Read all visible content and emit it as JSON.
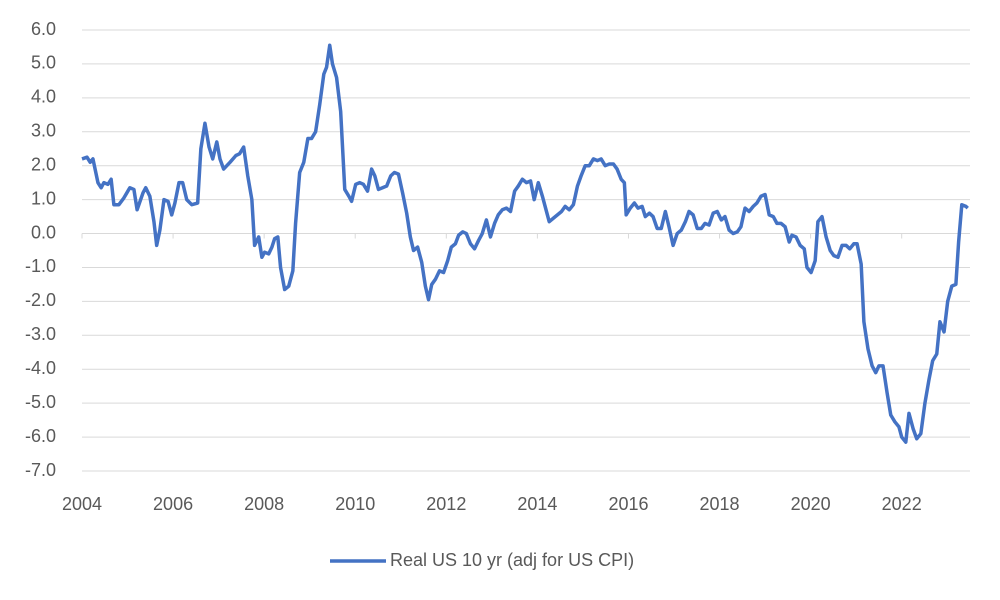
{
  "chart_data": {
    "type": "line",
    "x": [
      2004.0,
      2004.11,
      2004.18,
      2004.24,
      2004.35,
      2004.42,
      2004.48,
      2004.57,
      2004.64,
      2004.7,
      2004.81,
      2004.92,
      2005.05,
      2005.14,
      2005.21,
      2005.34,
      2005.4,
      2005.49,
      2005.58,
      2005.64,
      2005.71,
      2005.8,
      2005.89,
      2005.97,
      2006.04,
      2006.13,
      2006.21,
      2006.3,
      2006.41,
      2006.54,
      2006.61,
      2006.7,
      2006.79,
      2006.87,
      2006.96,
      2007.03,
      2007.11,
      2007.25,
      2007.38,
      2007.46,
      2007.55,
      2007.64,
      2007.73,
      2007.79,
      2007.88,
      2007.95,
      2008.01,
      2008.1,
      2008.17,
      2008.23,
      2008.3,
      2008.36,
      2008.45,
      2008.54,
      2008.63,
      2008.69,
      2008.78,
      2008.87,
      2008.96,
      2009.04,
      2009.13,
      2009.22,
      2009.31,
      2009.37,
      2009.44,
      2009.5,
      2009.59,
      2009.68,
      2009.77,
      2009.86,
      2009.92,
      2010.01,
      2010.1,
      2010.18,
      2010.27,
      2010.36,
      2010.43,
      2010.51,
      2010.6,
      2010.69,
      2010.78,
      2010.86,
      2010.95,
      2011.04,
      2011.13,
      2011.21,
      2011.28,
      2011.37,
      2011.46,
      2011.54,
      2011.61,
      2011.68,
      2011.76,
      2011.85,
      2011.94,
      2012.03,
      2012.11,
      2012.2,
      2012.27,
      2012.36,
      2012.44,
      2012.53,
      2012.62,
      2012.71,
      2012.79,
      2012.88,
      2012.97,
      2013.06,
      2013.14,
      2013.23,
      2013.32,
      2013.41,
      2013.5,
      2013.58,
      2013.67,
      2013.76,
      2013.85,
      2013.93,
      2014.02,
      2014.11,
      2014.2,
      2014.26,
      2014.35,
      2014.44,
      2014.53,
      2014.61,
      2014.7,
      2014.79,
      2014.88,
      2014.96,
      2015.05,
      2015.14,
      2015.23,
      2015.32,
      2015.4,
      2015.49,
      2015.58,
      2015.67,
      2015.75,
      2015.84,
      2015.91,
      2015.95,
      2016.04,
      2016.13,
      2016.21,
      2016.3,
      2016.37,
      2016.46,
      2016.54,
      2016.63,
      2016.72,
      2016.81,
      2016.89,
      2016.98,
      2017.07,
      2017.16,
      2017.25,
      2017.33,
      2017.42,
      2017.51,
      2017.6,
      2017.68,
      2017.77,
      2017.86,
      2017.95,
      2018.04,
      2018.12,
      2018.21,
      2018.3,
      2018.39,
      2018.47,
      2018.56,
      2018.65,
      2018.74,
      2018.82,
      2018.91,
      2019.0,
      2019.09,
      2019.18,
      2019.26,
      2019.35,
      2019.44,
      2019.53,
      2019.59,
      2019.68,
      2019.77,
      2019.86,
      2019.92,
      2020.01,
      2020.1,
      2020.16,
      2020.25,
      2020.34,
      2020.43,
      2020.51,
      2020.6,
      2020.69,
      2020.78,
      2020.86,
      2020.95,
      2021.02,
      2021.11,
      2021.17,
      2021.26,
      2021.35,
      2021.43,
      2021.5,
      2021.59,
      2021.68,
      2021.76,
      2021.85,
      2021.94,
      2022.0,
      2022.09,
      2022.16,
      2022.25,
      2022.33,
      2022.42,
      2022.51,
      2022.6,
      2022.68,
      2022.77,
      2022.84,
      2022.93,
      2023.01,
      2023.1,
      2023.19,
      2023.25,
      2023.32,
      2023.41,
      2023.45
    ],
    "series": [
      {
        "name": "Real US 10 yr (adj for US CPI)",
        "color": "#4472c4",
        "values": [
          2.2,
          2.25,
          2.1,
          2.2,
          1.5,
          1.35,
          1.5,
          1.45,
          1.6,
          0.85,
          0.85,
          1.05,
          1.35,
          1.3,
          0.7,
          1.2,
          1.35,
          1.1,
          0.35,
          -0.35,
          0.1,
          1.0,
          0.95,
          0.55,
          0.9,
          1.5,
          1.5,
          1.0,
          0.85,
          0.9,
          2.5,
          3.25,
          2.55,
          2.2,
          2.7,
          2.2,
          1.9,
          2.1,
          2.3,
          2.35,
          2.55,
          1.7,
          1.0,
          -0.35,
          -0.1,
          -0.7,
          -0.55,
          -0.6,
          -0.4,
          -0.15,
          -0.1,
          -1.0,
          -1.65,
          -1.55,
          -1.1,
          0.3,
          1.8,
          2.1,
          2.8,
          2.8,
          3.0,
          3.8,
          4.7,
          4.9,
          5.55,
          5.0,
          4.6,
          3.6,
          1.3,
          1.1,
          0.95,
          1.45,
          1.5,
          1.45,
          1.25,
          1.9,
          1.7,
          1.3,
          1.35,
          1.4,
          1.7,
          1.8,
          1.75,
          1.2,
          0.6,
          -0.1,
          -0.5,
          -0.4,
          -0.85,
          -1.55,
          -1.95,
          -1.5,
          -1.35,
          -1.1,
          -1.15,
          -0.8,
          -0.4,
          -0.3,
          -0.05,
          0.05,
          0.0,
          -0.3,
          -0.45,
          -0.2,
          0.0,
          0.4,
          -0.1,
          0.3,
          0.55,
          0.7,
          0.75,
          0.65,
          1.25,
          1.4,
          1.6,
          1.5,
          1.55,
          1.0,
          1.5,
          1.1,
          0.65,
          0.35,
          0.45,
          0.55,
          0.65,
          0.8,
          0.7,
          0.85,
          1.4,
          1.7,
          2.0,
          2.0,
          2.2,
          2.15,
          2.2,
          2.0,
          2.05,
          2.05,
          1.9,
          1.6,
          1.5,
          0.55,
          0.75,
          0.9,
          0.75,
          0.8,
          0.5,
          0.6,
          0.5,
          0.15,
          0.15,
          0.65,
          0.2,
          -0.35,
          0.0,
          0.1,
          0.35,
          0.65,
          0.55,
          0.15,
          0.15,
          0.3,
          0.25,
          0.6,
          0.65,
          0.4,
          0.5,
          0.1,
          0.0,
          0.05,
          0.2,
          0.75,
          0.65,
          0.8,
          0.9,
          1.1,
          1.15,
          0.55,
          0.5,
          0.3,
          0.3,
          0.2,
          -0.25,
          -0.05,
          -0.1,
          -0.35,
          -0.45,
          -1.0,
          -1.15,
          -0.8,
          0.35,
          0.5,
          -0.1,
          -0.5,
          -0.65,
          -0.7,
          -0.35,
          -0.35,
          -0.45,
          -0.3,
          -0.3,
          -0.9,
          -2.6,
          -3.4,
          -3.9,
          -4.1,
          -3.9,
          -3.9,
          -4.7,
          -5.35,
          -5.55,
          -5.7,
          -6.0,
          -6.15,
          -5.3,
          -5.75,
          -6.05,
          -5.9,
          -5.0,
          -4.3,
          -3.75,
          -3.55,
          -2.6,
          -2.9,
          -2.0,
          -1.55,
          -1.5,
          -0.25,
          0.85,
          0.8,
          0.75
        ]
      }
    ],
    "xlim": [
      2004,
      2023.5
    ],
    "xticks": [
      2004,
      2006,
      2008,
      2010,
      2012,
      2014,
      2016,
      2018,
      2020,
      2022
    ],
    "ylim": [
      -7,
      6
    ],
    "yticks": [
      {
        "value": 6,
        "label": "6.0"
      },
      {
        "value": 5,
        "label": "5.0"
      },
      {
        "value": 4,
        "label": "4.0"
      },
      {
        "value": 3,
        "label": "3.0"
      },
      {
        "value": 2,
        "label": "2.0"
      },
      {
        "value": 1,
        "label": "1.0"
      },
      {
        "value": 0,
        "label": "0.0"
      },
      {
        "value": -1,
        "label": "-1.0"
      },
      {
        "value": -2,
        "label": "-2.0"
      },
      {
        "value": -3,
        "label": "-3.0"
      },
      {
        "value": -4,
        "label": "-4.0"
      },
      {
        "value": -5,
        "label": "-5.0"
      },
      {
        "value": -6,
        "label": "-6.0"
      },
      {
        "value": -7,
        "label": "-7.0"
      }
    ],
    "grid": true,
    "legend": "bottom"
  }
}
